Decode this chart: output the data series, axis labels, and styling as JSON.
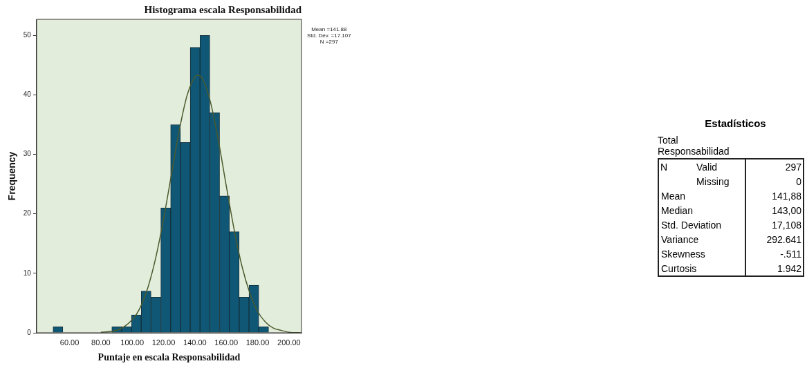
{
  "chart_data": [
    {
      "type": "histogram",
      "title": "Histograma escala Responsabilidad",
      "xlabel": "Puntaje en escala Responsabilidad",
      "ylabel": "Frequency",
      "bins": [
        49.5,
        55.75,
        62,
        68.25,
        74.5,
        80.75,
        87,
        93.25,
        99.5,
        105.75,
        112,
        118.25,
        124.5,
        130.75,
        137,
        143.25,
        149.5,
        155.75,
        162,
        168.25,
        174.5,
        180.75,
        187
      ],
      "values": [
        1,
        0,
        0,
        0,
        0,
        0,
        1,
        1,
        3,
        7,
        6,
        21,
        35,
        32,
        48,
        50,
        37,
        23,
        17,
        6,
        8,
        1
      ],
      "color": "#0f5775",
      "series": [
        {
          "type": "line",
          "color": "#4b5a2e",
          "x": [
            80,
            90,
            100,
            105,
            110,
            115,
            120,
            125,
            130,
            135,
            140,
            142,
            145,
            150,
            155,
            160,
            165,
            170,
            175,
            180,
            185,
            190,
            195,
            200,
            208
          ],
          "values": [
            0.1,
            0.4,
            2.2,
            4.2,
            7.6,
            12.6,
            19.1,
            26.6,
            34.0,
            39.9,
            43.0,
            43.3,
            42.6,
            38.7,
            32.3,
            24.7,
            17.4,
            11.2,
            6.7,
            3.6,
            1.8,
            0.8,
            0.4,
            0.1,
            0.0
          ]
        }
      ],
      "xlim": [
        39,
        208
      ],
      "ylim": [
        0,
        52.7
      ],
      "xticks": [
        {
          "value": 60,
          "label": "60.00"
        },
        {
          "value": 80,
          "label": "80.00"
        },
        {
          "value": 100,
          "label": "100.00"
        },
        {
          "value": 120,
          "label": "120.00"
        },
        {
          "value": 140,
          "label": "140.00"
        },
        {
          "value": 160,
          "label": "160.00"
        },
        {
          "value": 180,
          "label": "180.00"
        },
        {
          "value": 200,
          "label": "200.00"
        }
      ],
      "yticks": [
        0,
        10,
        20,
        30,
        40,
        50
      ],
      "annotations": [
        "Mean =141.88",
        "Std. Dev. =17.107",
        "N =297"
      ],
      "marker": "none",
      "grid": false,
      "legend": false
    },
    {
      "type": "other",
      "title": "Estadísticos",
      "subtitle": "Total Responsabilidad",
      "annotations": [
        "N"
      ],
      "categories": [
        "Valid",
        "Missing",
        "Mean",
        "Median",
        "Std. Deviation",
        "Variance",
        "Skewness",
        "Curtosis"
      ],
      "value_labels": [
        "297",
        "0",
        "141,88",
        "143,00",
        "17,108",
        "292.641",
        "-.511",
        "1.942"
      ]
    }
  ]
}
